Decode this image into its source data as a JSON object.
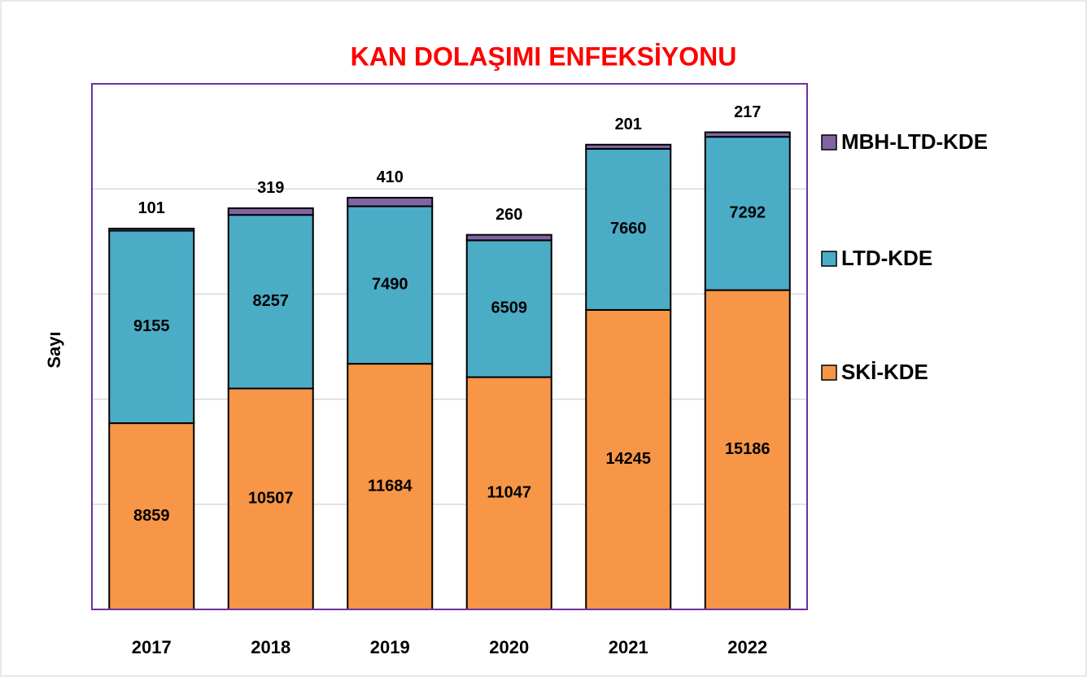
{
  "chart_data": {
    "type": "stacked_bar",
    "title": "KAN DOLAŞIMI ENFEKSİYONU",
    "y_label": "Sayı",
    "categories": [
      "2017",
      "2018",
      "2019",
      "2020",
      "2021",
      "2022"
    ],
    "series": [
      {
        "name": "SKİ-KDE",
        "color": "#f79646",
        "values": [
          8859,
          10507,
          11684,
          11047,
          14245,
          15186
        ]
      },
      {
        "name": "LTD-KDE",
        "color": "#4bacc6",
        "values": [
          9155,
          8257,
          7490,
          6509,
          7660,
          7292
        ]
      },
      {
        "name": "MBH-LTD-KDE",
        "color": "#8064a2",
        "values": [
          101,
          319,
          410,
          260,
          201,
          217
        ]
      }
    ],
    "ylim": [
      0,
      25000
    ],
    "yticks": [
      0,
      5000,
      10000,
      15000,
      20000,
      25000
    ],
    "grid": true,
    "legend": "right"
  }
}
